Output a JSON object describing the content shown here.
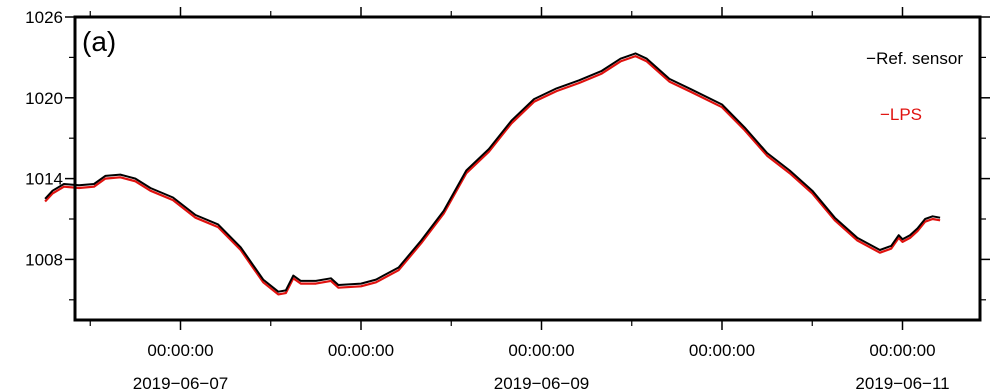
{
  "chart_data": {
    "type": "line",
    "panel_label": "(a)",
    "title": "",
    "xlabel": "",
    "ylabel": "",
    "ylim": [
      1003.5,
      1026
    ],
    "xlim": [
      "2019-06-06T06:00:00",
      "2019-06-11T05:00:00"
    ],
    "y_ticks": [
      1008,
      1014,
      1020,
      1026
    ],
    "y_tick_labels": [
      "1008",
      "1014",
      "1020",
      "1026"
    ],
    "y_minor_ticks": [
      1005,
      1011,
      1017,
      1023
    ],
    "x_time_ticks": [
      {
        "t": "2019-06-07T00:00:00",
        "label": "00:00:00"
      },
      {
        "t": "2019-06-08T00:00:00",
        "label": "00:00:00"
      },
      {
        "t": "2019-06-09T00:00:00",
        "label": "00:00:00"
      },
      {
        "t": "2019-06-10T00:00:00",
        "label": "00:00:00"
      },
      {
        "t": "2019-06-11T00:00:00",
        "label": "00:00:00"
      }
    ],
    "x_date_labels": [
      {
        "t": "2019-06-07T00:00:00",
        "label": "2019−06−07"
      },
      {
        "t": "2019-06-09T00:00:00",
        "label": "2019−06−09"
      },
      {
        "t": "2019-06-11T00:00:00",
        "label": "2019−06−11"
      }
    ],
    "x_minor_ticks": [
      "2019-06-06T12:00:00",
      "2019-06-07T12:00:00",
      "2019-06-08T12:00:00",
      "2019-06-09T12:00:00",
      "2019-06-10T12:00:00"
    ],
    "grid": false,
    "legend_position": "top-right",
    "series": [
      {
        "name": "−Ref. sensor",
        "color": "#000000",
        "points": [
          [
            "2019-06-06T06:00:00",
            1012.5
          ],
          [
            "2019-06-06T07:00:00",
            1013.1
          ],
          [
            "2019-06-06T08:30:00",
            1013.6
          ],
          [
            "2019-06-06T10:30:00",
            1013.5
          ],
          [
            "2019-06-06T12:30:00",
            1013.6
          ],
          [
            "2019-06-06T14:00:00",
            1014.2
          ],
          [
            "2019-06-06T16:00:00",
            1014.3
          ],
          [
            "2019-06-06T18:00:00",
            1014.0
          ],
          [
            "2019-06-06T20:00:00",
            1013.3
          ],
          [
            "2019-06-06T23:00:00",
            1012.6
          ],
          [
            "2019-06-07T02:00:00",
            1011.3
          ],
          [
            "2019-06-07T05:00:00",
            1010.6
          ],
          [
            "2019-06-07T08:00:00",
            1008.9
          ],
          [
            "2019-06-07T11:00:00",
            1006.5
          ],
          [
            "2019-06-07T13:00:00",
            1005.6
          ],
          [
            "2019-06-07T14:00:00",
            1005.7
          ],
          [
            "2019-06-07T15:00:00",
            1006.8
          ],
          [
            "2019-06-07T16:00:00",
            1006.4
          ],
          [
            "2019-06-07T18:00:00",
            1006.4
          ],
          [
            "2019-06-07T20:00:00",
            1006.6
          ],
          [
            "2019-06-07T21:00:00",
            1006.1
          ],
          [
            "2019-06-08T00:00:00",
            1006.2
          ],
          [
            "2019-06-08T02:00:00",
            1006.5
          ],
          [
            "2019-06-08T05:00:00",
            1007.4
          ],
          [
            "2019-06-08T08:00:00",
            1009.4
          ],
          [
            "2019-06-08T11:00:00",
            1011.6
          ],
          [
            "2019-06-08T14:00:00",
            1014.6
          ],
          [
            "2019-06-08T17:00:00",
            1016.2
          ],
          [
            "2019-06-08T20:00:00",
            1018.3
          ],
          [
            "2019-06-08T23:00:00",
            1019.9
          ],
          [
            "2019-06-09T02:00:00",
            1020.7
          ],
          [
            "2019-06-09T05:00:00",
            1021.3
          ],
          [
            "2019-06-09T08:00:00",
            1022.0
          ],
          [
            "2019-06-09T10:30:00",
            1022.9
          ],
          [
            "2019-06-09T12:30:00",
            1023.3
          ],
          [
            "2019-06-09T14:00:00",
            1022.9
          ],
          [
            "2019-06-09T17:00:00",
            1021.4
          ],
          [
            "2019-06-09T20:00:00",
            1020.6
          ],
          [
            "2019-06-10T00:00:00",
            1019.5
          ],
          [
            "2019-06-10T03:00:00",
            1017.8
          ],
          [
            "2019-06-10T06:00:00",
            1015.9
          ],
          [
            "2019-06-10T09:00:00",
            1014.6
          ],
          [
            "2019-06-10T12:00:00",
            1013.1
          ],
          [
            "2019-06-10T15:00:00",
            1011.1
          ],
          [
            "2019-06-10T18:00:00",
            1009.6
          ],
          [
            "2019-06-10T21:00:00",
            1008.7
          ],
          [
            "2019-06-10T22:30:00",
            1009.0
          ],
          [
            "2019-06-10T23:30:00",
            1009.8
          ],
          [
            "2019-06-11T00:00:00",
            1009.5
          ],
          [
            "2019-06-11T01:00:00",
            1009.8
          ],
          [
            "2019-06-11T02:00:00",
            1010.3
          ],
          [
            "2019-06-11T03:00:00",
            1011.0
          ],
          [
            "2019-06-11T04:00:00",
            1011.2
          ],
          [
            "2019-06-11T05:00:00",
            1011.1
          ]
        ]
      },
      {
        "name": "−LPS",
        "color": "#e0120f",
        "points": [
          [
            "2019-06-06T06:00:00",
            1012.3
          ],
          [
            "2019-06-06T07:00:00",
            1012.9
          ],
          [
            "2019-06-06T08:30:00",
            1013.4
          ],
          [
            "2019-06-06T10:30:00",
            1013.3
          ],
          [
            "2019-06-06T12:30:00",
            1013.4
          ],
          [
            "2019-06-06T14:00:00",
            1014.0
          ],
          [
            "2019-06-06T16:00:00",
            1014.1
          ],
          [
            "2019-06-06T18:00:00",
            1013.8
          ],
          [
            "2019-06-06T20:00:00",
            1013.1
          ],
          [
            "2019-06-06T23:00:00",
            1012.4
          ],
          [
            "2019-06-07T02:00:00",
            1011.1
          ],
          [
            "2019-06-07T05:00:00",
            1010.4
          ],
          [
            "2019-06-07T08:00:00",
            1008.7
          ],
          [
            "2019-06-07T11:00:00",
            1006.3
          ],
          [
            "2019-06-07T13:00:00",
            1005.4
          ],
          [
            "2019-06-07T14:00:00",
            1005.5
          ],
          [
            "2019-06-07T15:00:00",
            1006.6
          ],
          [
            "2019-06-07T16:00:00",
            1006.2
          ],
          [
            "2019-06-07T18:00:00",
            1006.2
          ],
          [
            "2019-06-07T20:00:00",
            1006.4
          ],
          [
            "2019-06-07T21:00:00",
            1005.9
          ],
          [
            "2019-06-08T00:00:00",
            1006.0
          ],
          [
            "2019-06-08T02:00:00",
            1006.3
          ],
          [
            "2019-06-08T05:00:00",
            1007.2
          ],
          [
            "2019-06-08T08:00:00",
            1009.2
          ],
          [
            "2019-06-08T11:00:00",
            1011.4
          ],
          [
            "2019-06-08T14:00:00",
            1014.4
          ],
          [
            "2019-06-08T17:00:00",
            1016.0
          ],
          [
            "2019-06-08T20:00:00",
            1018.1
          ],
          [
            "2019-06-08T23:00:00",
            1019.7
          ],
          [
            "2019-06-09T02:00:00",
            1020.5
          ],
          [
            "2019-06-09T05:00:00",
            1021.1
          ],
          [
            "2019-06-09T08:00:00",
            1021.8
          ],
          [
            "2019-06-09T10:30:00",
            1022.7
          ],
          [
            "2019-06-09T12:30:00",
            1023.1
          ],
          [
            "2019-06-09T14:00:00",
            1022.7
          ],
          [
            "2019-06-09T17:00:00",
            1021.2
          ],
          [
            "2019-06-09T20:00:00",
            1020.4
          ],
          [
            "2019-06-10T00:00:00",
            1019.3
          ],
          [
            "2019-06-10T03:00:00",
            1017.6
          ],
          [
            "2019-06-10T06:00:00",
            1015.7
          ],
          [
            "2019-06-10T09:00:00",
            1014.4
          ],
          [
            "2019-06-10T12:00:00",
            1012.9
          ],
          [
            "2019-06-10T15:00:00",
            1010.9
          ],
          [
            "2019-06-10T18:00:00",
            1009.4
          ],
          [
            "2019-06-10T21:00:00",
            1008.5
          ],
          [
            "2019-06-10T22:30:00",
            1008.8
          ],
          [
            "2019-06-10T23:30:00",
            1009.6
          ],
          [
            "2019-06-11T00:00:00",
            1009.3
          ],
          [
            "2019-06-11T01:00:00",
            1009.6
          ],
          [
            "2019-06-11T02:00:00",
            1010.1
          ],
          [
            "2019-06-11T03:00:00",
            1010.8
          ],
          [
            "2019-06-11T04:00:00",
            1011.0
          ],
          [
            "2019-06-11T05:00:00",
            1010.9
          ]
        ]
      }
    ]
  }
}
